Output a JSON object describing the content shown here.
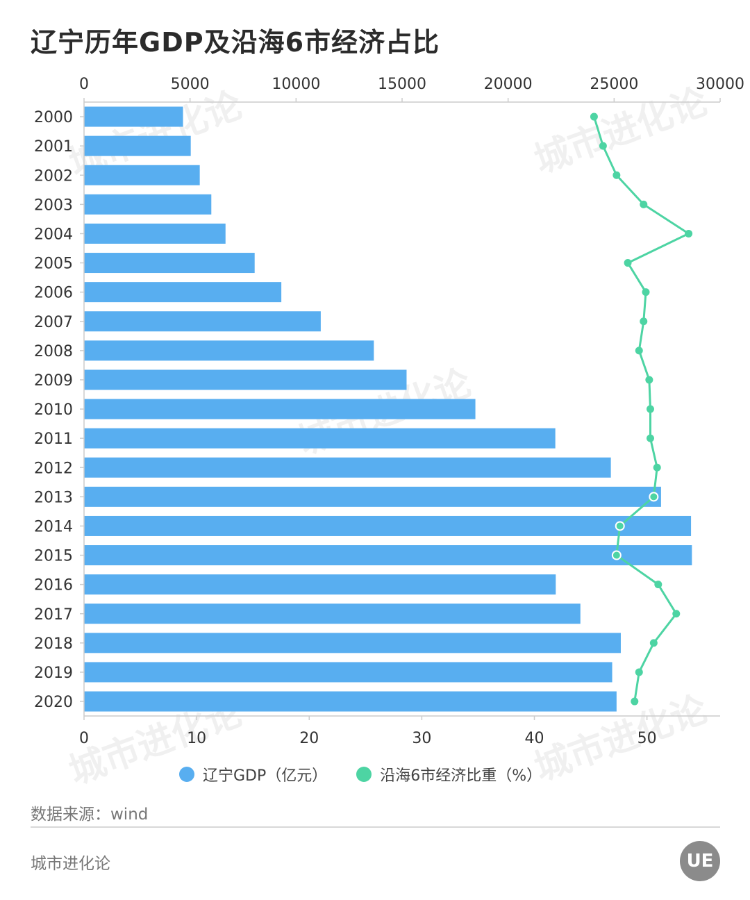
{
  "title": "辽宁历年GDP及沿海6市经济占比",
  "legend": {
    "gdp_label": "辽宁GDP（亿元）",
    "share_label": "沿海6市经济比重（%）"
  },
  "source": "数据来源：wind",
  "brand": "城市进化论",
  "logo_text": "UE",
  "watermark": "城市进化论",
  "colors": {
    "bar": "#58aef0",
    "line": "#4dd4a3",
    "axis": "#cccccc",
    "text": "#333333"
  },
  "chart_data": {
    "type": "bar",
    "orientation": "horizontal",
    "categories": [
      "2000",
      "2001",
      "2002",
      "2003",
      "2004",
      "2005",
      "2006",
      "2007",
      "2008",
      "2009",
      "2010",
      "2011",
      "2012",
      "2013",
      "2014",
      "2015",
      "2016",
      "2017",
      "2018",
      "2019",
      "2020"
    ],
    "series": [
      {
        "name": "辽宁GDP（亿元）",
        "type": "bar",
        "axis": "top",
        "values": [
          4669,
          5033,
          5458,
          6003,
          6673,
          8047,
          9305,
          11164,
          13668,
          15212,
          18457,
          22227,
          24846,
          27213,
          28627,
          28669,
          22247,
          23409,
          25315,
          24909,
          25115
        ]
      },
      {
        "name": "沿海6市经济比重（%）",
        "type": "line",
        "axis": "bottom",
        "values": [
          45.3,
          46.1,
          47.3,
          49.7,
          53.7,
          48.3,
          49.9,
          49.7,
          49.3,
          50.2,
          50.3,
          50.3,
          50.9,
          50.6,
          47.6,
          47.3,
          51.0,
          52.6,
          50.6,
          49.3,
          48.9
        ]
      }
    ],
    "top_axis": {
      "ticks": [
        "0",
        "5000",
        "10000",
        "15000",
        "20000",
        "25000",
        "30000"
      ],
      "range": [
        0,
        30000
      ]
    },
    "bottom_axis": {
      "ticks": [
        "0",
        "10",
        "20",
        "30",
        "40",
        "50"
      ],
      "range": [
        0,
        56.5
      ]
    },
    "legend_position": "bottom"
  }
}
